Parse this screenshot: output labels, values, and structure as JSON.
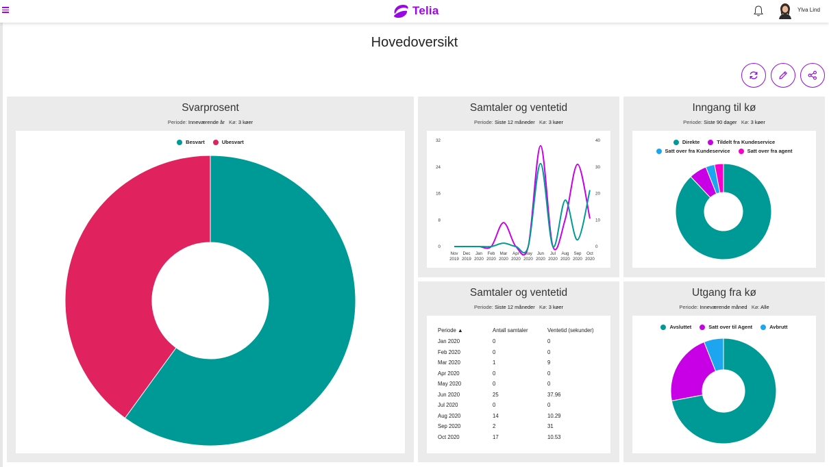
{
  "header": {
    "logo_text": "Telia",
    "user_name": "Ylva Lind"
  },
  "page": {
    "title": "Hovedoversikt"
  },
  "actions": {
    "refresh_icon": "refresh-icon",
    "edit_icon": "pencil-icon",
    "share_icon": "share-icon"
  },
  "cards": {
    "svarprosent": {
      "title": "Svarprosent",
      "period_label": "Periode:",
      "period_value": "Inneværende år",
      "queue_label": "Kø:",
      "queue_value": "3 køer",
      "legend": [
        {
          "label": "Besvart",
          "color": "#009a96"
        },
        {
          "label": "Ubesvart",
          "color": "#e0225f"
        }
      ]
    },
    "samtaler_chart": {
      "title": "Samtaler og ventetid",
      "period_label": "Periode:",
      "period_value": "Siste 12 måneder",
      "queue_label": "Kø:",
      "queue_value": "3 køer"
    },
    "inngang": {
      "title": "Inngang til kø",
      "period_label": "Periode:",
      "period_value": "Siste 90 dager",
      "queue_label": "Kø:",
      "queue_value": "3 køer",
      "legend": [
        {
          "label": "Direkte",
          "color": "#009a96"
        },
        {
          "label": "Tildelt fra Kundeservice",
          "color": "#c800e6"
        },
        {
          "label": "Satt over fra Kundeservice",
          "color": "#1da5f0"
        },
        {
          "label": "Satt over fra agent",
          "color": "#f500c8"
        }
      ]
    },
    "samtaler_table": {
      "title": "Samtaler og ventetid",
      "period_label": "Periode:",
      "period_value": "Siste 12 måneder",
      "queue_label": "Kø:",
      "queue_value": "3 køer",
      "columns": [
        "Periode ▲",
        "Antall samtaler",
        "Ventetid (sekunder)"
      ],
      "rows": [
        [
          "Jan 2020",
          "0",
          "0"
        ],
        [
          "Feb 2020",
          "0",
          "0"
        ],
        [
          "Mar 2020",
          "1",
          "9"
        ],
        [
          "Apr 2020",
          "0",
          "0"
        ],
        [
          "May 2020",
          "0",
          "0"
        ],
        [
          "Jun 2020",
          "25",
          "37.96"
        ],
        [
          "Jul 2020",
          "0",
          "0"
        ],
        [
          "Aug 2020",
          "14",
          "10.29"
        ],
        [
          "Sep 2020",
          "2",
          "31"
        ],
        [
          "Oct 2020",
          "17",
          "10.53"
        ]
      ]
    },
    "utgang": {
      "title": "Utgang fra kø",
      "period_label": "Periode:",
      "period_value": "Inneværende måned",
      "queue_label": "Kø:",
      "queue_value": "Alle",
      "legend": [
        {
          "label": "Avsluttet",
          "color": "#009a96"
        },
        {
          "label": "Satt over til Agent",
          "color": "#c800e6"
        },
        {
          "label": "Avbrutt",
          "color": "#1da5f0"
        }
      ]
    }
  },
  "chart_data": [
    {
      "type": "pie",
      "labels": [
        "Besvart",
        "Ubesvart"
      ],
      "values": [
        60,
        40
      ],
      "colors": [
        "#009a96",
        "#e0225f"
      ]
    },
    {
      "type": "line",
      "categories": [
        "Nov 2019",
        "Dec 2019",
        "Jan 2020",
        "Feb 2020",
        "Mar 2020",
        "Apr 2020",
        "May 2020",
        "Jun 2020",
        "Jul 2020",
        "Aug 2020",
        "Sep 2020",
        "Oct 2020"
      ],
      "x_tick_top": [
        "Nov",
        "Dec",
        "Jan",
        "Feb",
        "Mar",
        "Apr",
        "May",
        "Jun",
        "Jul",
        "Aug",
        "Sep",
        "Oct"
      ],
      "x_tick_bottom": [
        "2019",
        "2019",
        "2020",
        "2020",
        "2020",
        "2020",
        "2020",
        "2020",
        "2020",
        "2020",
        "2020",
        "2020"
      ],
      "y_left_ticks": [
        "0",
        "8",
        "16",
        "24",
        "32"
      ],
      "y_right_ticks": [
        "0",
        "10",
        "20",
        "30",
        "40"
      ],
      "ylim_left": [
        0,
        32
      ],
      "ylim_right": [
        0,
        40
      ],
      "series": [
        {
          "color": "#009a96",
          "axis": "left",
          "values": [
            0,
            0,
            0,
            0,
            1,
            0,
            0,
            25,
            0,
            14,
            2,
            17
          ]
        },
        {
          "color": "#c800e6",
          "axis": "right",
          "values": [
            0,
            0,
            0,
            0,
            9,
            0,
            0,
            37.96,
            0,
            10.29,
            31,
            10.53
          ]
        }
      ]
    },
    {
      "type": "pie",
      "values": [
        88,
        6,
        3,
        3
      ],
      "colors": [
        "#009a96",
        "#c800e6",
        "#1da5f0",
        "#f500c8"
      ]
    },
    {
      "type": "pie",
      "values": [
        72,
        22,
        6
      ],
      "colors": [
        "#009a96",
        "#c800e6",
        "#1da5f0"
      ]
    }
  ]
}
